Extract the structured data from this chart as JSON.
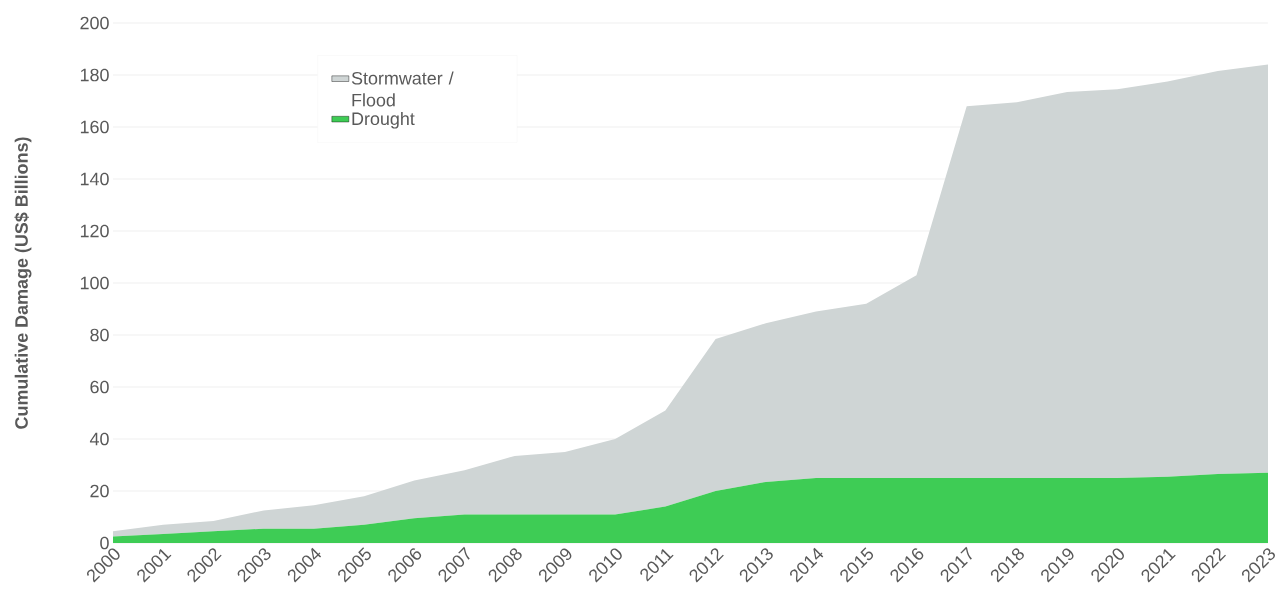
{
  "chart_data": {
    "type": "area",
    "stacked": true,
    "ylabel": "Cumulative Damage (US$ Billions)",
    "categories": [
      "2000",
      "2001",
      "2002",
      "2003",
      "2004",
      "2005",
      "2006",
      "2007",
      "2008",
      "2009",
      "2010",
      "2011",
      "2012",
      "2013",
      "2014",
      "2015",
      "2016",
      "2017",
      "2018",
      "2019",
      "2020",
      "2021",
      "2022",
      "2023"
    ],
    "series": [
      {
        "name": "Drought",
        "color": "#3ecc55",
        "values": [
          2.5,
          3.5,
          4.5,
          5.5,
          5.5,
          7,
          9.5,
          11,
          11,
          11,
          11,
          14,
          20,
          23.5,
          25,
          25,
          25,
          25,
          25,
          25,
          25,
          25.5,
          26.5,
          27
        ]
      },
      {
        "name": "Stormwater / Flood",
        "color": "#cfd5d5",
        "values": [
          2,
          3.5,
          4,
          7,
          9,
          11,
          14.5,
          17,
          22.5,
          24,
          29,
          37,
          58.5,
          61,
          64,
          67,
          78,
          143,
          144.5,
          148.5,
          149.5,
          152,
          155,
          157
        ]
      }
    ],
    "ylim": [
      0,
      200
    ],
    "yticks": [
      0,
      20,
      40,
      60,
      80,
      100,
      120,
      140,
      160,
      180,
      200
    ],
    "grid": "y",
    "legend": "top left"
  }
}
